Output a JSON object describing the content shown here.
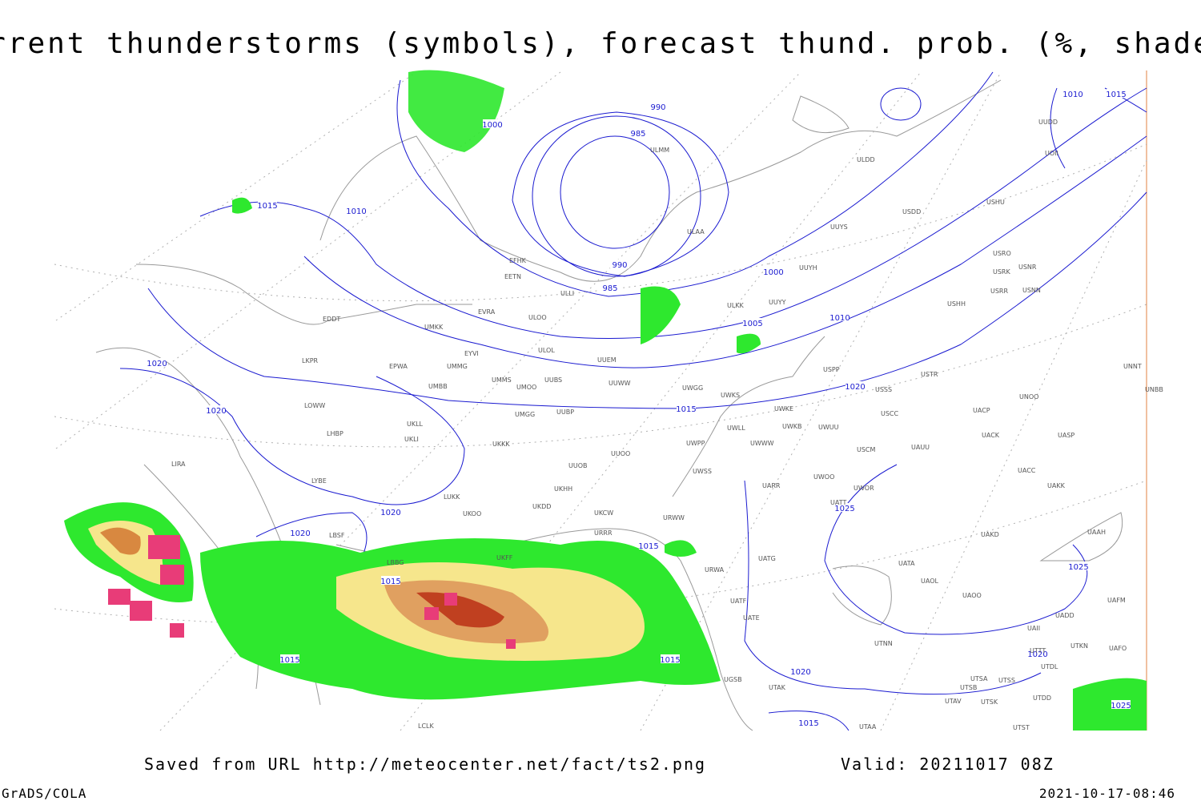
{
  "header": {
    "title": "Current thunderstorms (symbols), forecast thund. prob. (%, shaded)"
  },
  "footer": {
    "source": "Saved from URL http://meteocenter.net/fact/ts2.png",
    "valid": "Valid: 20211017 08Z",
    "software": "GrADS/COLA",
    "timestamp": "2021-10-17-08:46"
  },
  "isobar_labels": [
    990,
    985,
    1000,
    1015,
    1010,
    990,
    985,
    1000,
    1005,
    1010,
    1020,
    1020,
    1020,
    1015,
    1020,
    1020,
    1025,
    1015,
    1015,
    1025,
    1015,
    1015,
    1020,
    1020,
    1015,
    1025,
    1010,
    1015
  ],
  "stations": [
    "ULMM",
    "ULDD",
    "USDD",
    "USHU",
    "UUYS",
    "ULAA",
    "EFHK",
    "EETN",
    "ULLI",
    "UUYH",
    "USRO",
    "USNR",
    "USRK",
    "USRR",
    "USNN",
    "ULKK",
    "UUYY",
    "EVRA",
    "ULOO",
    "USHH",
    "EDDT",
    "UMKK",
    "ULOL",
    "EYVI",
    "UUEM",
    "LKPR",
    "EPWA",
    "UMMG",
    "USPP",
    "USTR",
    "UNNT",
    "UMMS",
    "UMOO",
    "UUBS",
    "UUWW",
    "UWGG",
    "UWKS",
    "USSS",
    "UNBB",
    "UMBB",
    "LOWW",
    "UWKE",
    "UMGG",
    "UUBP",
    "USCC",
    "UACP",
    "UNOO",
    "UKLL",
    "LHBP",
    "UWKB",
    "UWUU",
    "UKLI",
    "UACK",
    "UASP",
    "UWLL",
    "UWWW",
    "UWPP",
    "UKKK",
    "USCM",
    "UAUU",
    "LIRA",
    "UUOO",
    "UUOB",
    "UWSS",
    "UACC",
    "LYBE",
    "UKHH",
    "UWOO",
    "UKDD",
    "UAKK",
    "UWOR",
    "UARR",
    "LUKK",
    "UATT",
    "UKOO",
    "UKCW",
    "URWW",
    "UAKD",
    "LBSF",
    "URRR",
    "UAAH",
    "UKFF",
    "LBBG",
    "UATG",
    "URWA",
    "UATA",
    "UAOL",
    "UAOO",
    "UATE",
    "UATF",
    "UADD",
    "UAFM",
    "UTNN",
    "UAII",
    "UTKN",
    "UAFO",
    "UTTT",
    "UTDL",
    "UTSA",
    "UTSS",
    "UTSB",
    "UTAK",
    "UGSB",
    "UTAV",
    "UTSK",
    "UTDD",
    "UTAA",
    "UTST",
    "LCLK",
    "UUDD",
    "UOII"
  ]
}
